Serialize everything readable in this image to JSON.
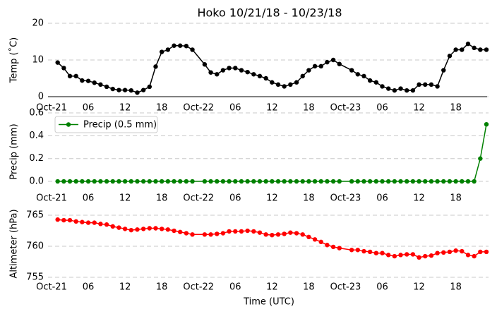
{
  "chart_data": [
    {
      "type": "line",
      "title": "Hoko 10/21/18 - 10/23/18",
      "y_label": "Temp (˚C)",
      "x": [
        1,
        2,
        3,
        4,
        5,
        6,
        7,
        8,
        9,
        10,
        11,
        12,
        13,
        14,
        15,
        16,
        17,
        18,
        19,
        20,
        21,
        22,
        23,
        25,
        26,
        27,
        28,
        29,
        30,
        31,
        32,
        33,
        34,
        35,
        36,
        37,
        38,
        39,
        40,
        41,
        42,
        43,
        44,
        45,
        46,
        47,
        49,
        50,
        51,
        52,
        53,
        54,
        55,
        56,
        57,
        58,
        59,
        60,
        61,
        62,
        63,
        64,
        65,
        66,
        67,
        68,
        69,
        70,
        71
      ],
      "xlim": [
        0,
        71
      ],
      "xticks": [
        {
          "value": 0,
          "label": "Oct-21"
        },
        {
          "value": 6,
          "label": "06"
        },
        12,
        18,
        {
          "value": 24,
          "label": "Oct-22"
        },
        {
          "value": 30,
          "label": "06"
        },
        {
          "value": 36,
          "label": "12"
        },
        {
          "value": 42,
          "label": "18"
        },
        {
          "value": 48,
          "label": "Oct-23"
        },
        {
          "value": 54,
          "label": "06"
        },
        {
          "value": 60,
          "label": "12"
        },
        {
          "value": 66,
          "label": "18"
        }
      ],
      "ylim": [
        0,
        20
      ],
      "yticks": [
        0,
        10,
        20
      ],
      "grid": true,
      "series": [
        {
          "color": "#000000",
          "values": [
            9.3,
            7.8,
            5.6,
            5.6,
            4.4,
            4.3,
            3.8,
            3.3,
            2.7,
            2.1,
            1.8,
            1.8,
            1.7,
            1.1,
            1.8,
            2.7,
            8.2,
            12.2,
            12.8,
            13.9,
            13.9,
            13.8,
            12.8,
            8.8,
            6.6,
            6.1,
            7.2,
            7.8,
            7.8,
            7.2,
            6.7,
            6.1,
            5.6,
            5.0,
            3.9,
            3.3,
            2.8,
            3.3,
            3.9,
            5.6,
            7.2,
            8.3,
            8.3,
            9.4,
            10.0,
            8.9,
            7.2,
            6.1,
            5.6,
            4.4,
            3.9,
            2.8,
            2.2,
            1.7,
            2.2,
            1.7,
            1.7,
            3.3,
            3.3,
            3.3,
            2.8,
            7.2,
            11.1,
            12.8,
            12.8,
            14.4,
            13.3,
            12.8,
            12.8
          ]
        }
      ]
    },
    {
      "type": "line",
      "y_label": "Precip (mm)",
      "x": [
        1,
        2,
        3,
        4,
        5,
        6,
        7,
        8,
        9,
        10,
        11,
        12,
        13,
        14,
        15,
        16,
        17,
        18,
        19,
        20,
        21,
        22,
        23,
        25,
        26,
        27,
        28,
        29,
        30,
        31,
        32,
        33,
        34,
        35,
        36,
        37,
        38,
        39,
        40,
        41,
        42,
        43,
        44,
        45,
        46,
        47,
        49,
        50,
        51,
        52,
        53,
        54,
        55,
        56,
        57,
        58,
        59,
        60,
        61,
        62,
        63,
        64,
        65,
        66,
        67,
        68,
        69,
        70,
        71
      ],
      "xlim": [
        0,
        71
      ],
      "xticks": [
        {
          "value": 0,
          "label": "Oct-21"
        },
        {
          "value": 6,
          "label": "06"
        },
        12,
        18,
        {
          "value": 24,
          "label": "Oct-22"
        },
        {
          "value": 30,
          "label": "06"
        },
        {
          "value": 36,
          "label": "12"
        },
        {
          "value": 42,
          "label": "18"
        },
        {
          "value": 48,
          "label": "Oct-23"
        },
        {
          "value": 54,
          "label": "06"
        },
        {
          "value": 60,
          "label": "12"
        },
        {
          "value": 66,
          "label": "18"
        }
      ],
      "ylim": [
        -0.08,
        0.6
      ],
      "yticks": [
        {
          "value": 0,
          "label": "0.0"
        },
        {
          "value": 0.2,
          "label": "0.2"
        },
        {
          "value": 0.4,
          "label": "0.4"
        },
        {
          "value": 0.6,
          "label": "0.6"
        }
      ],
      "grid": true,
      "legend": "upper left",
      "series": [
        {
          "name": "Precip (0.5 mm)",
          "color": "#008000",
          "values": [
            0,
            0,
            0,
            0,
            0,
            0,
            0,
            0,
            0,
            0,
            0,
            0,
            0,
            0,
            0,
            0,
            0,
            0,
            0,
            0,
            0,
            0,
            0,
            0,
            0,
            0,
            0,
            0,
            0,
            0,
            0,
            0,
            0,
            0,
            0,
            0,
            0,
            0,
            0,
            0,
            0,
            0,
            0,
            0,
            0,
            0,
            0,
            0,
            0,
            0,
            0,
            0,
            0,
            0,
            0,
            0,
            0,
            0,
            0,
            0,
            0,
            0,
            0,
            0,
            0,
            0,
            0,
            0.2,
            0.5
          ]
        }
      ]
    },
    {
      "type": "line",
      "y_label": "Altimeter (hPa)",
      "x_label": "Time (UTC)",
      "x": [
        1,
        2,
        3,
        4,
        5,
        6,
        7,
        8,
        9,
        10,
        11,
        12,
        13,
        14,
        15,
        16,
        17,
        18,
        19,
        20,
        21,
        22,
        23,
        25,
        26,
        27,
        28,
        29,
        30,
        31,
        32,
        33,
        34,
        35,
        36,
        37,
        38,
        39,
        40,
        41,
        42,
        43,
        44,
        45,
        46,
        47,
        49,
        50,
        51,
        52,
        53,
        54,
        55,
        56,
        57,
        58,
        59,
        60,
        61,
        62,
        63,
        64,
        65,
        66,
        67,
        68,
        69,
        70,
        71
      ],
      "xlim": [
        0,
        71
      ],
      "xticks": [
        {
          "value": 0,
          "label": "Oct-21"
        },
        {
          "value": 6,
          "label": "06"
        },
        12,
        18,
        {
          "value": 24,
          "label": "Oct-22"
        },
        {
          "value": 30,
          "label": "06"
        },
        {
          "value": 36,
          "label": "12"
        },
        {
          "value": 42,
          "label": "18"
        },
        {
          "value": 48,
          "label": "Oct-23"
        },
        {
          "value": 54,
          "label": "06"
        },
        {
          "value": 60,
          "label": "12"
        },
        {
          "value": 66,
          "label": "18"
        }
      ],
      "ylim": [
        755,
        765.8
      ],
      "yticks": [
        755,
        760,
        765
      ],
      "grid": true,
      "series": [
        {
          "color": "#ff0000",
          "values": [
            764.3,
            764.2,
            764.2,
            764.0,
            763.9,
            763.8,
            763.8,
            763.6,
            763.5,
            763.2,
            763.0,
            762.8,
            762.6,
            762.7,
            762.8,
            762.9,
            762.9,
            762.8,
            762.7,
            762.5,
            762.3,
            762.1,
            761.9,
            761.9,
            761.9,
            762.0,
            762.1,
            762.4,
            762.4,
            762.4,
            762.5,
            762.4,
            762.2,
            761.9,
            761.8,
            761.9,
            762.0,
            762.2,
            762.1,
            761.9,
            761.5,
            761.1,
            760.7,
            760.2,
            759.9,
            759.7,
            759.4,
            759.4,
            759.2,
            759.1,
            758.9,
            758.9,
            758.6,
            758.4,
            758.6,
            758.7,
            758.7,
            758.2,
            758.4,
            758.5,
            758.9,
            759.0,
            759.1,
            759.3,
            759.2,
            758.6,
            758.4,
            759.1,
            759.1
          ]
        }
      ]
    }
  ]
}
